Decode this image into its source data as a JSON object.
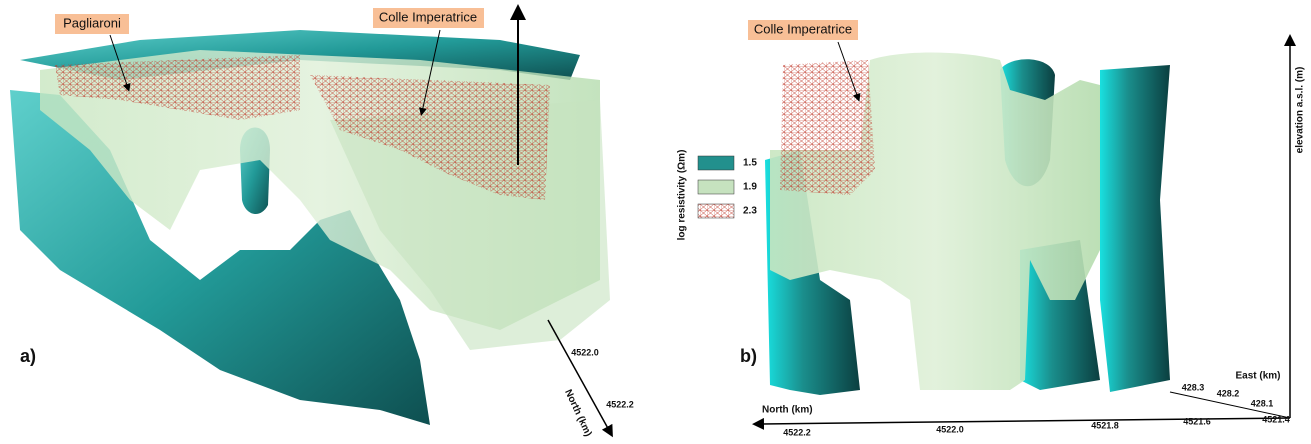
{
  "panel_a": {
    "label": "a)",
    "annotations": [
      "Pagliaroni",
      "Colle Imperatrice"
    ],
    "north_axis": {
      "title": "North (km)",
      "ticks": [
        "4522.0",
        "4522.2"
      ]
    }
  },
  "legend": {
    "title": "log resistivity (Ωm)",
    "items": [
      "1.5",
      "1.9",
      "2.3"
    ]
  },
  "panel_b": {
    "label": "b)",
    "annotation": "Colle Imperatrice",
    "vertical_axis": {
      "title": "elevation a.s.l. (m)"
    },
    "east_axis": {
      "title": "East (km)",
      "ticks": [
        "428.3",
        "428.2",
        "428.1"
      ]
    },
    "north_axis": {
      "title": "North (km)",
      "ticks": [
        "4522.2",
        "4522.0",
        "4521.8",
        "4521.6",
        "4521.4"
      ]
    }
  }
}
